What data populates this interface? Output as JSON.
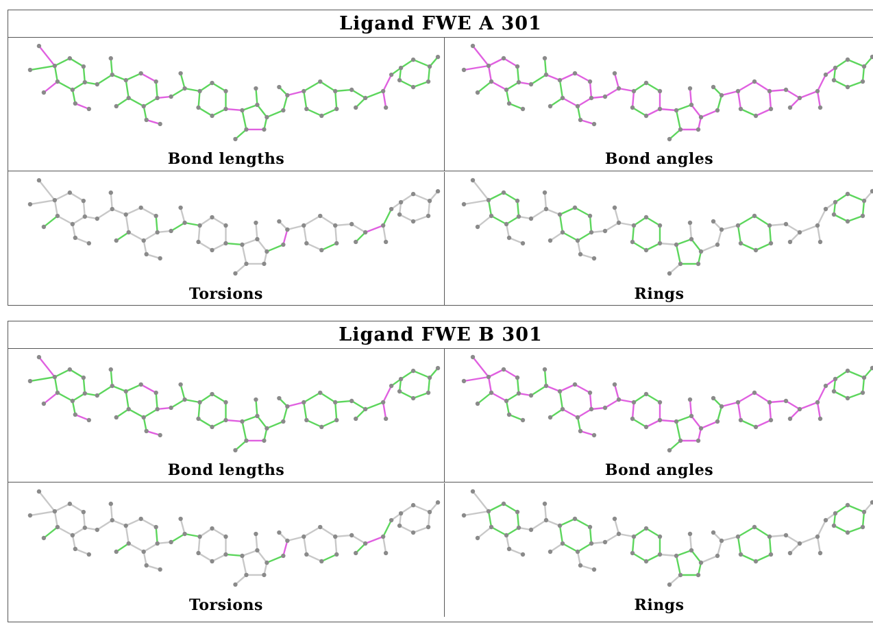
{
  "blocks": [
    {
      "title": "Ligand FWE A 301",
      "panels": [
        {
          "caption": "Bond lengths",
          "mode": "lengths"
        },
        {
          "caption": "Bond angles",
          "mode": "angles"
        },
        {
          "caption": "Torsions",
          "mode": "torsions"
        },
        {
          "caption": "Rings",
          "mode": "rings"
        }
      ]
    },
    {
      "title": "Ligand FWE B 301",
      "panels": [
        {
          "caption": "Bond lengths",
          "mode": "lengths"
        },
        {
          "caption": "Bond angles",
          "mode": "angles"
        },
        {
          "caption": "Torsions",
          "mode": "torsions"
        },
        {
          "caption": "Rings",
          "mode": "rings"
        }
      ]
    }
  ],
  "colors": {
    "good": "#5cd65c",
    "outlier": "#e060e0",
    "neutral": "#c8c8c8",
    "atom": "#8a8a8a",
    "border": "#555555"
  }
}
